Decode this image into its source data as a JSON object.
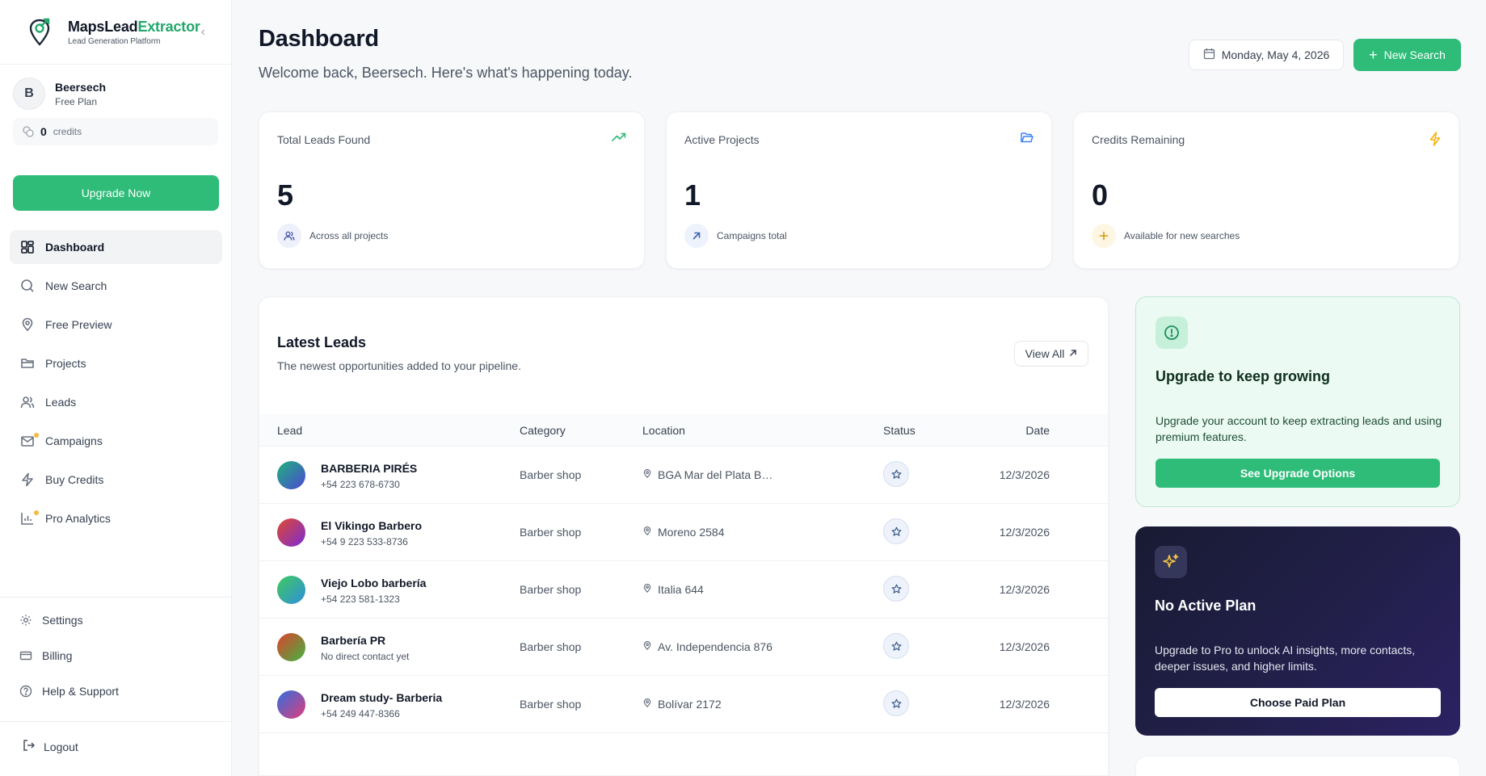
{
  "brand": {
    "name_part1": "MapsLead",
    "name_part2": "Extractor",
    "tagline": "Lead Generation Platform"
  },
  "user": {
    "initial": "B",
    "name": "Beersech",
    "plan": "Free Plan",
    "credits_value": "0",
    "credits_label": "credits"
  },
  "sidebar": {
    "upgrade_label": "Upgrade Now",
    "items": [
      {
        "label": "Dashboard",
        "icon": "dashboard-icon",
        "active": true
      },
      {
        "label": "New Search",
        "icon": "search-icon"
      },
      {
        "label": "Free Preview",
        "icon": "map-pin-icon"
      },
      {
        "label": "Projects",
        "icon": "folder-icon"
      },
      {
        "label": "Leads",
        "icon": "users-icon"
      },
      {
        "label": "Campaigns",
        "icon": "mail-icon",
        "badge": true
      },
      {
        "label": "Buy Credits",
        "icon": "bolt-icon"
      },
      {
        "label": "Pro Analytics",
        "icon": "chart-icon",
        "badge": true
      }
    ],
    "bottom_items": [
      {
        "label": "Settings",
        "icon": "gear-icon"
      },
      {
        "label": "Billing",
        "icon": "card-icon"
      },
      {
        "label": "Help & Support",
        "icon": "help-icon"
      }
    ],
    "logout_label": "Logout"
  },
  "header": {
    "title": "Dashboard",
    "subtitle": "Welcome back, Beersech. Here's what's happening today.",
    "date": "Monday, May 4, 2026",
    "new_search_label": "New Search"
  },
  "stats": [
    {
      "label": "Total Leads Found",
      "value": "5",
      "foot": "Across all projects",
      "accent": "#2ebc78"
    },
    {
      "label": "Active Projects",
      "value": "1",
      "foot": "Campaigns total",
      "accent": "#3b82f6"
    },
    {
      "label": "Credits Remaining",
      "value": "0",
      "foot": "Available for new searches",
      "accent": "#f5b10a"
    }
  ],
  "latest_leads": {
    "title": "Latest Leads",
    "subtitle": "The newest opportunities added to your pipeline.",
    "view_all_label": "View All",
    "columns": [
      "Lead",
      "Category",
      "Location",
      "Status",
      "Date"
    ],
    "rows": [
      {
        "name": "BARBERIA PIRÉS",
        "phone": "+54 223 678-6730",
        "category": "Barber shop",
        "location": "BGA Mar del Plata B…",
        "date": "12/3/2026",
        "colors": [
          "#1fb37a",
          "#4b47d6"
        ]
      },
      {
        "name": "El Vikingo Barbero",
        "phone": "+54 9 223 533-8736",
        "category": "Barber shop",
        "location": "Moreno 2584",
        "date": "12/3/2026",
        "colors": [
          "#e0492f",
          "#7a2bd6"
        ]
      },
      {
        "name": "Viejo Lobo barbería",
        "phone": "+54 223 581-1323",
        "category": "Barber shop",
        "location": "Italia 644",
        "date": "12/3/2026",
        "colors": [
          "#3fcb5a",
          "#2f8ee0"
        ]
      },
      {
        "name": "Barbería PR",
        "phone": "No direct contact yet",
        "category": "Barber shop",
        "location": "Av. Independencia 876",
        "date": "12/3/2026",
        "colors": [
          "#e0402f",
          "#3fb640"
        ]
      },
      {
        "name": "Dream study- Barberia",
        "phone": "+54 249 447-8366",
        "category": "Barber shop",
        "location": "Bolívar 2172",
        "date": "12/3/2026",
        "colors": [
          "#2f6fe0",
          "#e03c7a"
        ]
      }
    ]
  },
  "upgrade_card": {
    "title": "Upgrade to keep growing",
    "description": "Upgrade your account to keep extracting leads and using premium features.",
    "button_label": "See Upgrade Options"
  },
  "plan_card": {
    "title": "No Active Plan",
    "description": "Upgrade to Pro to unlock AI insights, more contacts, deeper issues, and higher limits.",
    "button_label": "Choose Paid Plan"
  }
}
